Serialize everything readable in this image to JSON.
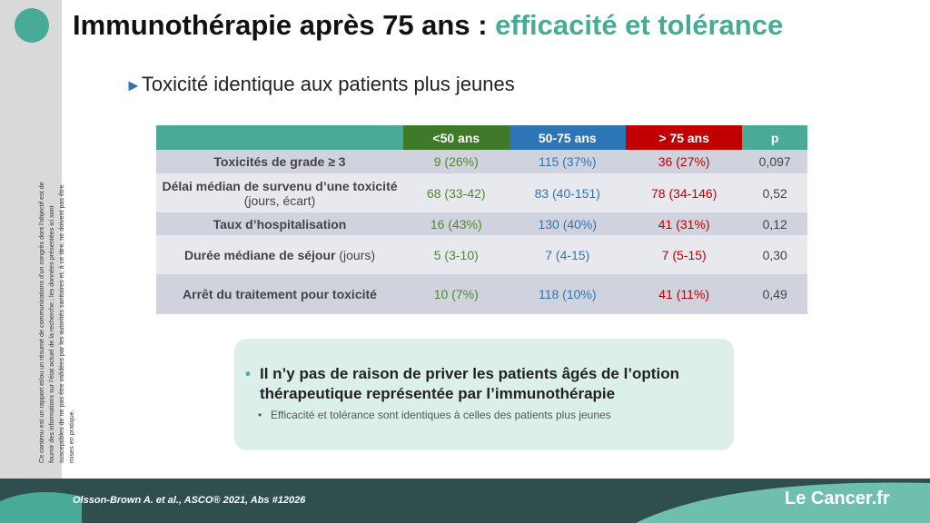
{
  "header": {
    "title_main": "Immunothérapie après 75 ans :",
    "title_accent": "efficacité et tolérance"
  },
  "subtitle": "Toxicité identique aux patients plus jeunes",
  "table": {
    "columns": [
      "<50 ans",
      "50-75 ans",
      "> 75 ans",
      "p"
    ],
    "rows": [
      {
        "label": "Toxicités de grade ≥ 3",
        "cells": [
          "9 (26%)",
          "115 (37%)",
          "36 (27%)",
          "0,097"
        ]
      },
      {
        "label": "Délai médian de survenu d’une toxicité",
        "note": "(jours, écart)",
        "cells": [
          "68 (33-42)",
          "83 (40-151)",
          "78 (34-146)",
          "0,52"
        ]
      },
      {
        "label": "Taux d’hospitalisation",
        "cells": [
          "16 (43%)",
          "130 (40%)",
          "41 (31%)",
          "0,12"
        ]
      },
      {
        "label": "Durée médiane de séjour",
        "note": "(jours)",
        "cells": [
          "5 (3-10)",
          "7 (4-15)",
          "7 (5-15)",
          "0,30"
        ]
      },
      {
        "label": "Arrêt du traitement pour toxicité",
        "cells": [
          "10 (7%)",
          "118 (10%)",
          "41 (11%)",
          "0,49"
        ]
      }
    ]
  },
  "conclusion": {
    "main": "Il n’y pas de raison de priver les patients âgés de l’option thérapeutique représentée par l’immunothérapie",
    "sub": "Efficacité et tolérance sont identiques à celles des patients plus jeunes"
  },
  "disclaimer": "Ce contenu est un rapport et/ou un résumé de communications d’un congrès dont l’objectif est de fournir des informations sur l’état actuel de la recherche ; les données présentées ici sont susceptibles de ne pas être validées par les autorités sanitaires et, à ce titre, ne doivent pas être mises en pratique.",
  "footer": {
    "citation": "Olsson-Brown A. et al., ASCO® 2021, Abs #12026",
    "logo_prefix": "Le",
    "logo_name": "Cancer.fr"
  }
}
